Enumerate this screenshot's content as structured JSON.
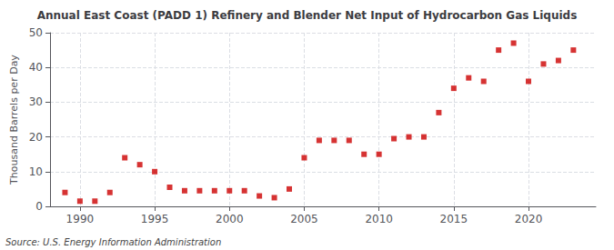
{
  "chart_data": {
    "type": "scatter",
    "title": "Annual East Coast (PADD 1) Refinery and Blender Net Input of Hydrocarbon Gas Liquids",
    "ylabel": "Thousand Barrels per Day",
    "annotation": "Source: U.S. Energy Information Administration",
    "color": "#cc0000",
    "marker": "square",
    "grid": true,
    "xlim": [
      1988.0,
      2024.5
    ],
    "ylim": [
      0,
      50
    ],
    "xticks": [
      1990,
      1995,
      2000,
      2005,
      2010,
      2015,
      2020
    ],
    "yticks": [
      0,
      10,
      20,
      30,
      40,
      50
    ],
    "x": [
      1989,
      1990,
      1991,
      1992,
      1993,
      1994,
      1995,
      1996,
      1997,
      1998,
      1999,
      2000,
      2001,
      2002,
      2003,
      2004,
      2005,
      2006,
      2007,
      2008,
      2009,
      2010,
      2011,
      2012,
      2013,
      2014,
      2015,
      2016,
      2017,
      2018,
      2019,
      2020,
      2021,
      2022,
      2023
    ],
    "values": [
      4.0,
      1.5,
      1.5,
      4.0,
      14.0,
      12.0,
      10.0,
      5.5,
      4.5,
      4.5,
      4.5,
      4.5,
      4.5,
      3.0,
      2.5,
      5.0,
      14.0,
      19.0,
      19.0,
      19.0,
      15.0,
      15.0,
      19.5,
      20.0,
      20.0,
      27.0,
      34.0,
      37.0,
      36.0,
      45.0,
      47.0,
      36.0,
      41.0,
      42.0,
      45.0
    ]
  }
}
